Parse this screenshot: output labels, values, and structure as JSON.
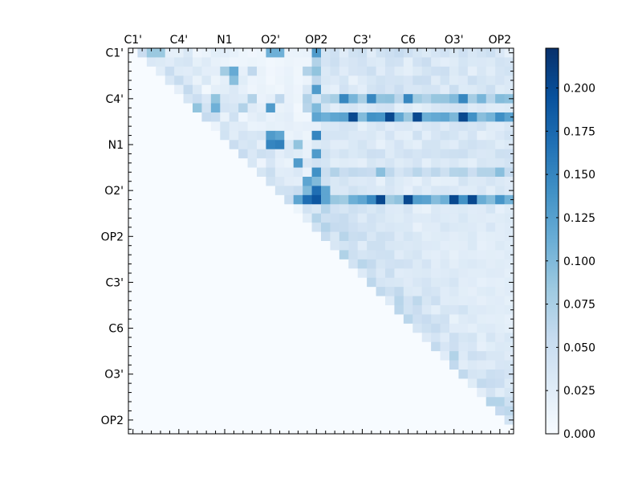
{
  "chart_data": {
    "type": "heatmap",
    "title": "",
    "n": 42,
    "triangle": "upper",
    "colormap": "Blues",
    "vmin": 0.0,
    "vmax": 0.223,
    "x_tick_labels": [
      "C1'",
      "C4'",
      "N1",
      "O2'",
      "OP2",
      "C3'",
      "C6",
      "O3'",
      "OP2"
    ],
    "y_tick_labels": [
      "C1'",
      "C4'",
      "N1",
      "O2'",
      "OP2",
      "C3'",
      "C6",
      "O3'",
      "OP2"
    ],
    "label_indices": [
      0,
      5,
      10,
      15,
      20,
      25,
      30,
      35,
      40
    ],
    "colorbar": {
      "ticks": [
        0.0,
        0.025,
        0.05,
        0.075,
        0.1,
        0.125,
        0.15,
        0.175,
        0.2
      ],
      "tick_labels": [
        "0.000",
        "0.025",
        "0.050",
        "0.075",
        "0.100",
        "0.125",
        "0.150",
        "0.175",
        "0.200"
      ]
    },
    "base_value": 0.005,
    "highlights": [
      [
        0,
        2,
        0.085
      ],
      [
        0,
        3,
        0.085
      ],
      [
        0,
        15,
        0.11
      ],
      [
        0,
        16,
        0.11
      ],
      [
        0,
        20,
        0.13
      ],
      [
        1,
        20,
        0.07
      ],
      [
        2,
        10,
        0.08
      ],
      [
        2,
        11,
        0.115
      ],
      [
        2,
        13,
        0.06
      ],
      [
        2,
        19,
        0.07
      ],
      [
        2,
        20,
        0.09
      ],
      [
        3,
        11,
        0.095
      ],
      [
        3,
        20,
        0.06
      ],
      [
        4,
        19,
        0.035
      ],
      [
        4,
        20,
        0.13
      ],
      [
        5,
        9,
        0.09
      ],
      [
        5,
        13,
        0.07
      ],
      [
        5,
        16,
        0.06
      ],
      [
        5,
        19,
        0.07
      ],
      [
        6,
        7,
        0.09
      ],
      [
        6,
        9,
        0.11
      ],
      [
        6,
        12,
        0.07
      ],
      [
        6,
        15,
        0.13
      ],
      [
        6,
        19,
        0.065
      ],
      [
        6,
        20,
        0.1
      ],
      [
        7,
        20,
        0.12
      ],
      [
        9,
        15,
        0.13
      ],
      [
        9,
        16,
        0.12
      ],
      [
        9,
        20,
        0.15
      ],
      [
        10,
        15,
        0.15
      ],
      [
        10,
        16,
        0.155
      ],
      [
        10,
        18,
        0.09
      ],
      [
        11,
        20,
        0.13
      ],
      [
        12,
        18,
        0.13
      ],
      [
        13,
        20,
        0.14
      ],
      [
        14,
        19,
        0.12
      ],
      [
        14,
        20,
        0.1
      ],
      [
        15,
        19,
        0.1
      ],
      [
        15,
        20,
        0.17
      ],
      [
        15,
        21,
        0.12
      ],
      [
        16,
        18,
        0.12
      ],
      [
        16,
        19,
        0.17
      ],
      [
        16,
        20,
        0.19
      ],
      [
        16,
        21,
        0.12
      ]
    ],
    "row_bands": [
      [
        5,
        0.11,
        [
          23,
          26,
          30,
          36
        ]
      ],
      [
        7,
        0.15,
        [
          24,
          28,
          31,
          36
        ]
      ],
      [
        11,
        0.05,
        []
      ],
      [
        13,
        0.07,
        [
          27,
          40
        ]
      ],
      [
        16,
        0.15,
        [
          27,
          30,
          35,
          37
        ]
      ]
    ]
  }
}
